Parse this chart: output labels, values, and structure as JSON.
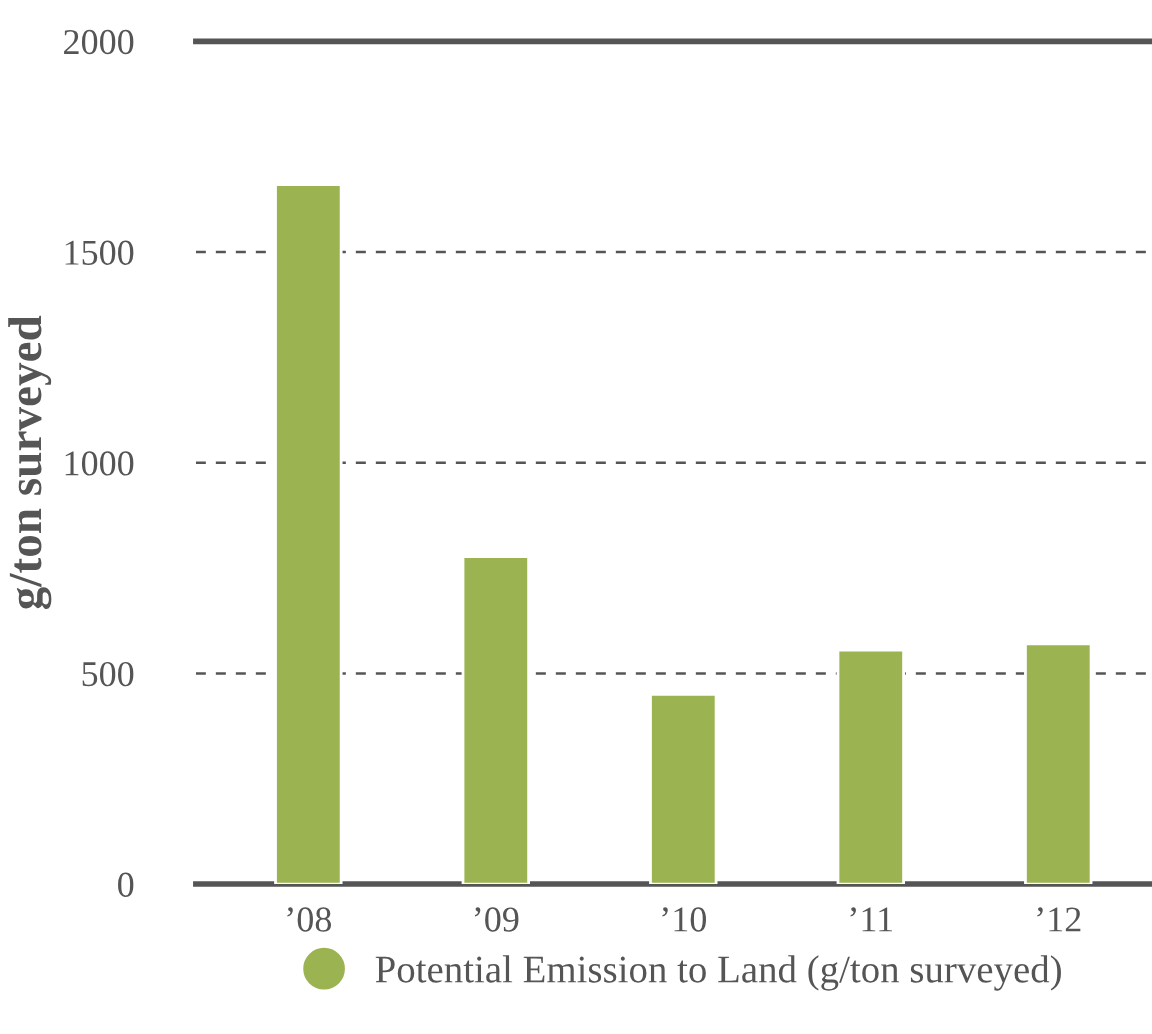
{
  "chart_data": {
    "type": "bar",
    "ylabel": "g/ton surveyed",
    "categories": [
      "’08",
      "’09",
      "’10",
      "’11",
      "’12"
    ],
    "series": [
      {
        "name": "Potential Emission to Land (g/ton surveyed)",
        "color": "#9bb350",
        "values": [
          1660,
          777,
          450,
          555,
          570
        ]
      }
    ],
    "ylim": [
      0,
      2000
    ],
    "yticks": [
      0,
      500,
      1000,
      1500,
      2000
    ],
    "grid": "y",
    "legend": "bottom"
  }
}
